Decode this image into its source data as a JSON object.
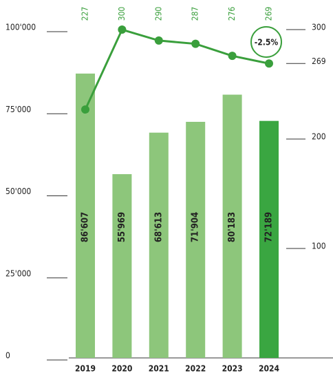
{
  "chart_data": {
    "type": "bar-line",
    "categories": [
      "2019",
      "2020",
      "2021",
      "2022",
      "2023",
      "2024"
    ],
    "ylim": [
      0,
      100000
    ],
    "yticks": [
      {
        "value": 0,
        "label": "0"
      },
      {
        "value": 25000,
        "label": "25'000"
      },
      {
        "value": 50000,
        "label": "50'000"
      },
      {
        "value": 75000,
        "label": "75'000"
      },
      {
        "value": 100000,
        "label": "100'000"
      }
    ],
    "y2lim": [
      0,
      300
    ],
    "y2ticks": [
      100,
      200,
      269,
      300
    ],
    "series": [
      {
        "type": "bar",
        "values": [
          86607,
          55969,
          68613,
          71904,
          80183,
          72189
        ],
        "value_labels": [
          "86'607",
          "55'969",
          "68'613",
          "71'904",
          "80'183",
          "72'189"
        ],
        "colors": [
          "#8dc67b",
          "#8dc67b",
          "#8dc67b",
          "#8dc67b",
          "#8dc67b",
          "#3aa641"
        ]
      },
      {
        "type": "line",
        "axis": "y2",
        "values": [
          227,
          300,
          290,
          287,
          276,
          269
        ],
        "color": "#3a9f3c"
      }
    ],
    "annotation": "-2.5%"
  }
}
